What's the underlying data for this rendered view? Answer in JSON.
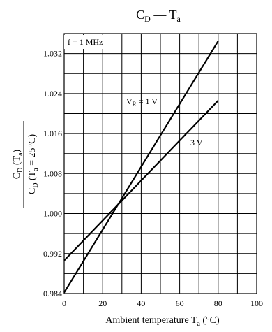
{
  "chart_data": {
    "type": "line",
    "title": {
      "main": "C",
      "main_sub": "D",
      "sep": " — ",
      "second": "T",
      "second_sub": "a"
    },
    "xlabel": "Ambient temperature  T",
    "xlabel_sub": "a",
    "xlabel_unit": "  (°C)",
    "ylabel": {
      "num": "C",
      "num_sub": "D",
      "num_paren_open": " (T",
      "num_paren_sub": "a",
      "num_paren_close": ")",
      "den": "C",
      "den_sub": "D",
      "den_paren_open": " (T",
      "den_paren_sub": "a",
      "den_paren_close": " = 25°C)"
    },
    "xlim": [
      0,
      100
    ],
    "ylim": [
      0.984,
      1.036
    ],
    "x_ticks": [
      0,
      20,
      40,
      60,
      80,
      100
    ],
    "x_tick_labels": [
      "0",
      "20",
      "40",
      "60",
      "80",
      "100"
    ],
    "y_ticks": [
      0.984,
      0.992,
      1.0,
      1.008,
      1.016,
      1.024,
      1.032
    ],
    "y_tick_labels": [
      "0.984",
      "0.992",
      "1.000",
      "1.008",
      "1.016",
      "1.024",
      "1.032"
    ],
    "grid": true,
    "condition_box": "f = 1 MHz",
    "series": [
      {
        "name": "V",
        "name_sub": "R",
        "name_rest": " = 1 V",
        "x": [
          0,
          80
        ],
        "y": [
          0.9842,
          1.0345
        ],
        "color": "#000000"
      },
      {
        "name": "3 V",
        "x": [
          0,
          80
        ],
        "y": [
          0.9906,
          1.0226
        ],
        "color": "#000000"
      }
    ]
  }
}
